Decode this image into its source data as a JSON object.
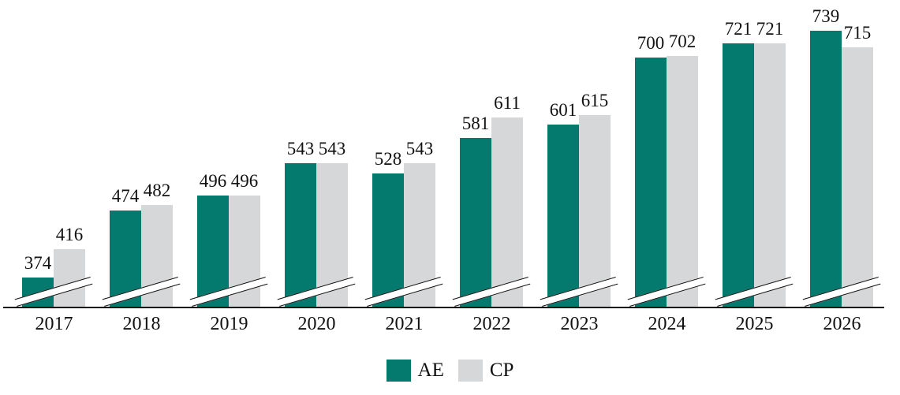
{
  "chart_data": {
    "type": "bar",
    "title": "",
    "xlabel": "",
    "ylabel": "",
    "categories": [
      "2017",
      "2018",
      "2019",
      "2020",
      "2021",
      "2022",
      "2023",
      "2024",
      "2025",
      "2026"
    ],
    "series": [
      {
        "name": "AE",
        "color": "#047a6e",
        "values": [
          374,
          474,
          496,
          543,
          528,
          581,
          601,
          700,
          721,
          739
        ]
      },
      {
        "name": "CP",
        "color": "#d6d7d8",
        "values": [
          416,
          482,
          496,
          543,
          543,
          611,
          615,
          702,
          721,
          715
        ]
      }
    ],
    "value_labels": true,
    "legend_position": "bottom",
    "grid": false,
    "axis_break": true,
    "baseline_value": 330,
    "ylim": [
      330,
      760
    ],
    "text_color": "#111111",
    "axis_color": "#111111"
  }
}
